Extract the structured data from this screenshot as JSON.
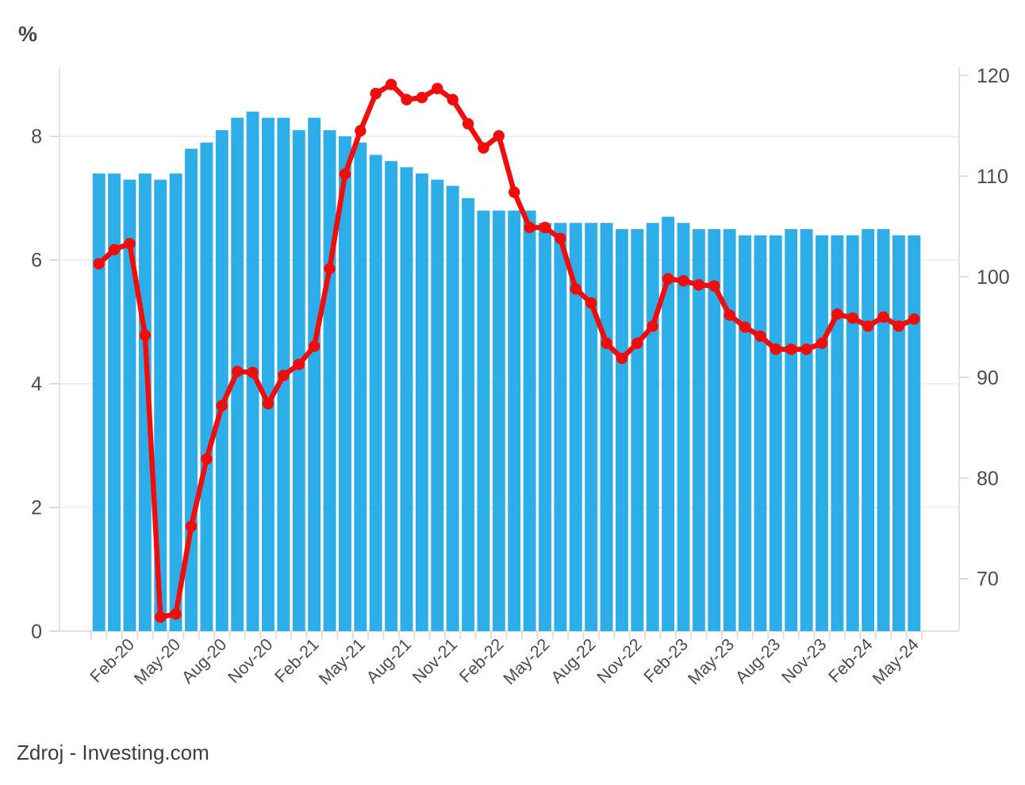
{
  "footer": {
    "source_text": "Zdroj - Investing.com"
  },
  "colors": {
    "background": "#FFFFFF",
    "bar": "#2DAEE8",
    "line": "#F20D0D",
    "grid": "#EFEFEF",
    "axis_line": "#E4E4E4",
    "tick": "#DCDCDC",
    "axis_text": "#4C4C4C",
    "unit_text": "#454545",
    "footer_text": "#3D3D3D"
  },
  "chart_data": {
    "type": "bar+line",
    "title": "",
    "grid": true,
    "legend": false,
    "categories": [
      "Dec-19",
      "Jan-20",
      "Feb-20",
      "Mar-20",
      "Apr-20",
      "May-20",
      "Jun-20",
      "Jul-20",
      "Aug-20",
      "Sep-20",
      "Oct-20",
      "Nov-20",
      "Dec-20",
      "Jan-21",
      "Feb-21",
      "Mar-21",
      "Apr-21",
      "May-21",
      "Jun-21",
      "Jul-21",
      "Aug-21",
      "Sep-21",
      "Oct-21",
      "Nov-21",
      "Dec-21",
      "Jan-22",
      "Feb-22",
      "Mar-22",
      "Apr-22",
      "May-22",
      "Jun-22",
      "Jul-22",
      "Aug-22",
      "Sep-22",
      "Oct-22",
      "Nov-22",
      "Dec-22",
      "Jan-23",
      "Feb-23",
      "Mar-23",
      "Apr-23",
      "May-23",
      "Jun-23",
      "Jul-23",
      "Aug-23",
      "Sep-23",
      "Oct-23",
      "Nov-23",
      "Dec-23",
      "Jan-24",
      "Feb-24",
      "Mar-24",
      "Apr-24",
      "May-24"
    ],
    "series": [
      {
        "name": "bars-left-axis",
        "type": "bar",
        "axis": "left",
        "values": [
          7.4,
          7.4,
          7.3,
          7.4,
          7.3,
          7.4,
          7.8,
          7.9,
          8.1,
          8.3,
          8.4,
          8.3,
          8.3,
          8.1,
          8.3,
          8.1,
          8.0,
          7.9,
          7.7,
          7.6,
          7.5,
          7.4,
          7.3,
          7.2,
          7.0,
          6.8,
          6.8,
          6.8,
          6.8,
          6.6,
          6.6,
          6.6,
          6.6,
          6.6,
          6.5,
          6.5,
          6.6,
          6.7,
          6.6,
          6.5,
          6.5,
          6.5,
          6.4,
          6.4,
          6.4,
          6.5,
          6.5,
          6.4,
          6.4,
          6.4,
          6.5,
          6.5,
          6.4,
          6.4
        ]
      },
      {
        "name": "line-right-axis",
        "type": "line",
        "axis": "right",
        "values": [
          101.3,
          102.7,
          103.3,
          94.2,
          66.2,
          66.5,
          75.2,
          81.9,
          87.2,
          90.6,
          90.5,
          87.4,
          90.2,
          91.3,
          93.1,
          100.8,
          110.2,
          114.5,
          118.2,
          119.1,
          117.6,
          117.8,
          118.7,
          117.6,
          115.2,
          112.8,
          114.0,
          108.4,
          104.9,
          104.9,
          103.8,
          98.8,
          97.4,
          93.4,
          91.9,
          93.4,
          95.1,
          99.8,
          99.6,
          99.2,
          99.1,
          96.2,
          95.0,
          94.1,
          92.8,
          92.8,
          92.8,
          93.4,
          96.3,
          95.9,
          95.1,
          96.0,
          95.1,
          95.8
        ]
      }
    ],
    "left_axis": {
      "unit": "%",
      "ticks": [
        0,
        2,
        4,
        6,
        8
      ],
      "range": [
        0,
        9.115
      ]
    },
    "right_axis": {
      "ticks": [
        70,
        80,
        90,
        100,
        110,
        120
      ],
      "range": [
        64.8,
        120.8
      ]
    },
    "x_axis": {
      "tick_labels": [
        "Feb-20",
        "May-20",
        "Aug-20",
        "Nov-20",
        "Feb-21",
        "May-21",
        "Aug-21",
        "Nov-21",
        "Feb-22",
        "May-22",
        "Aug-22",
        "Nov-22",
        "Feb-23",
        "May-23",
        "Aug-23",
        "Nov-23",
        "Feb-24",
        "May-24"
      ]
    }
  }
}
